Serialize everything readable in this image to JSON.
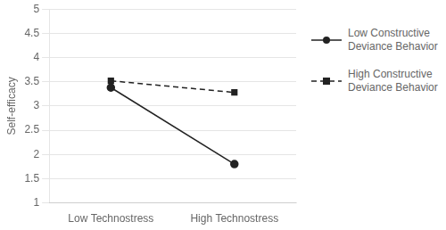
{
  "chart_data": {
    "type": "line",
    "categories": [
      "Low Technostress",
      "High Technostress"
    ],
    "series": [
      {
        "name": "Low Constructive\nDeviance Behavior",
        "color": "#222222",
        "values": [
          3.38,
          1.8
        ],
        "marker": "circle",
        "line_style": "solid"
      },
      {
        "name": "High Constructive\nDeviance Behavior",
        "color": "#222222",
        "values": [
          3.52,
          3.28
        ],
        "marker": "square",
        "line_style": "dashed"
      }
    ],
    "ylabel": "Self-efficacy",
    "ylim": [
      1,
      5
    ],
    "yticks": [
      1,
      1.5,
      2,
      2.5,
      3,
      3.5,
      4,
      4.5,
      5
    ],
    "grid": true,
    "legend": "right"
  }
}
